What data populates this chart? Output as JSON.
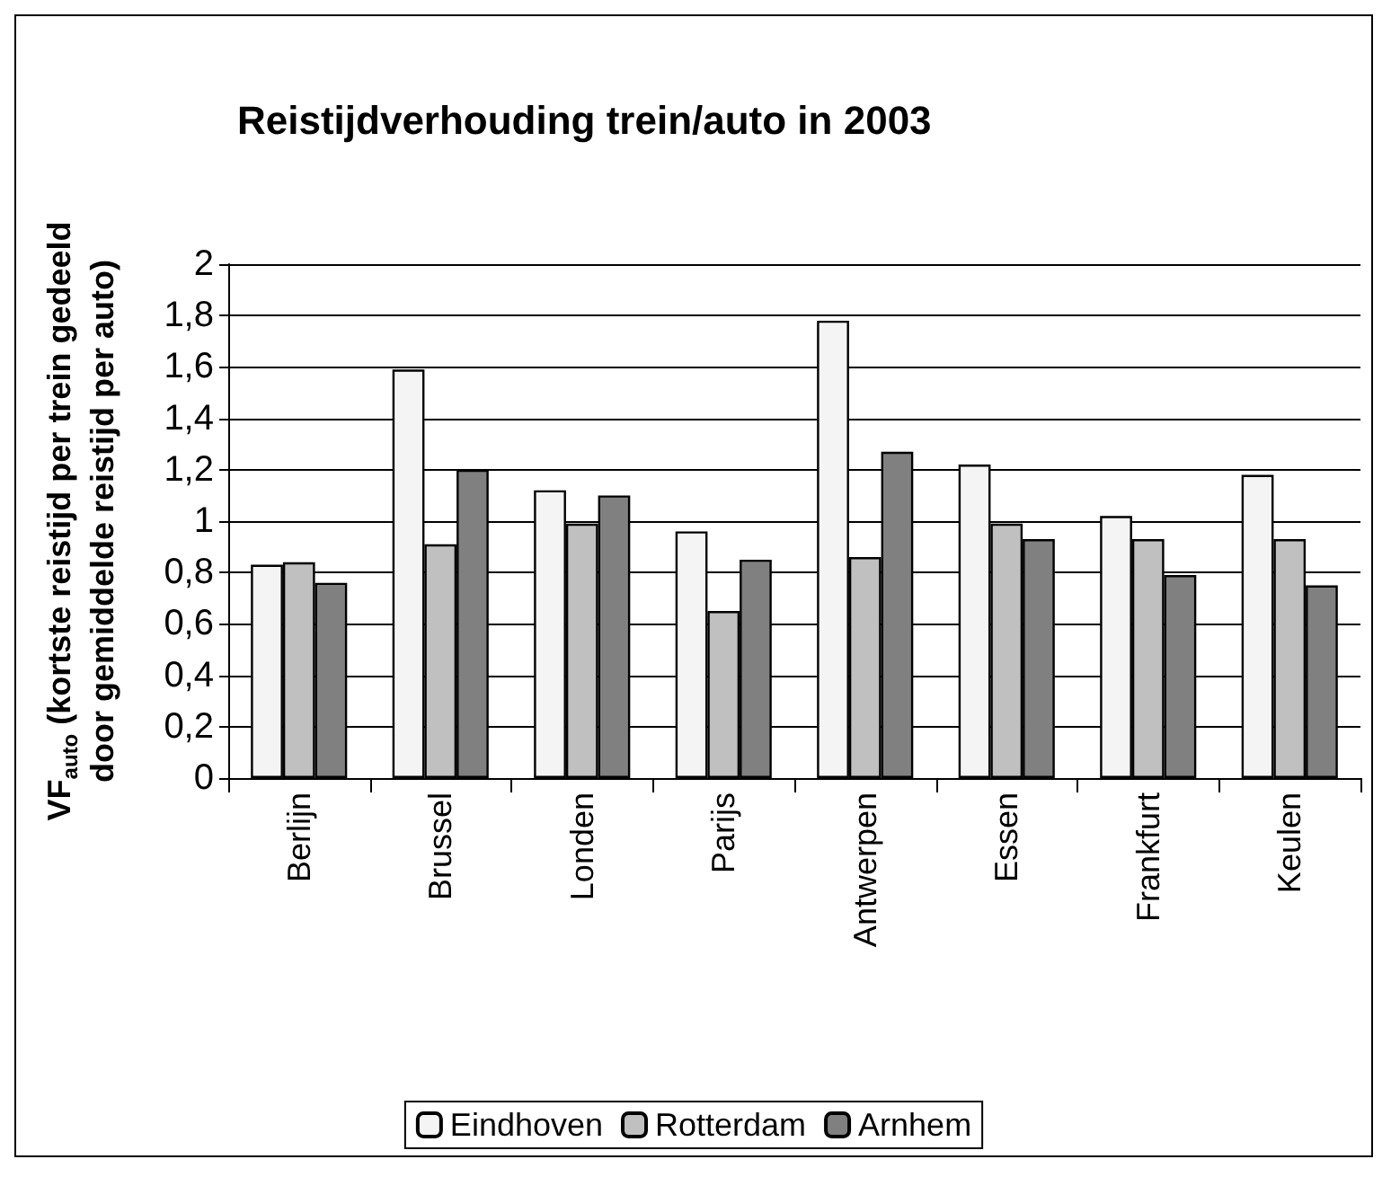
{
  "chart_data": {
    "type": "bar",
    "title": "Reistijdverhouding trein/auto in 2003",
    "ylabel": "VF$_{auto}$ (kortste reistijd per trein gedeeld door gemiddelde reistijd per auto)",
    "categories": [
      "Berlijn",
      "Brussel",
      "Londen",
      "Parijs",
      "Antwerpen",
      "Essen",
      "Frankfurt",
      "Keulen"
    ],
    "series": [
      {
        "name": "Eindhoven",
        "color": "#f4f4f4",
        "values": [
          0.83,
          1.59,
          1.12,
          0.96,
          1.78,
          1.22,
          1.02,
          1.18
        ]
      },
      {
        "name": "Rotterdam",
        "color": "#c0c0c0",
        "values": [
          0.84,
          0.91,
          0.99,
          0.65,
          0.86,
          0.99,
          0.93,
          0.93
        ]
      },
      {
        "name": "Arnhem",
        "color": "#808080",
        "values": [
          0.76,
          1.2,
          1.1,
          0.85,
          1.27,
          0.93,
          0.79,
          0.75
        ]
      }
    ],
    "ylim": [
      0,
      2
    ],
    "yticks": [
      0,
      {
        "value": 0.2,
        "label": "0,2"
      },
      {
        "value": 0.4,
        "label": "0,4"
      },
      {
        "value": 0.6,
        "label": "0,6"
      },
      {
        "value": 0.8,
        "label": "0,8"
      },
      1,
      {
        "value": 1.2,
        "label": "1,2"
      },
      {
        "value": 1.4,
        "label": "1,4"
      },
      {
        "value": 1.6,
        "label": "1,6"
      },
      {
        "value": 1.8,
        "label": "1,8"
      },
      2
    ],
    "grid": "y",
    "legend": "bottom"
  }
}
